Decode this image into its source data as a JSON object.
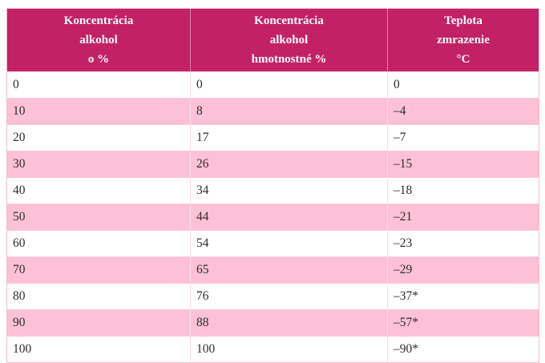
{
  "chart_data": {
    "type": "table",
    "title": "",
    "columns": [
      "Koncentrácia alkohol o %",
      "Koncentrácia alkohol hmotnostné %",
      "Teplota zmrazenie °C"
    ],
    "rows": [
      [
        0,
        0,
        0
      ],
      [
        10,
        8,
        -4
      ],
      [
        20,
        17,
        -7
      ],
      [
        30,
        26,
        -15
      ],
      [
        40,
        34,
        -18
      ],
      [
        50,
        44,
        -21
      ],
      [
        60,
        54,
        -23
      ],
      [
        70,
        65,
        -29
      ],
      [
        80,
        76,
        "-37*"
      ],
      [
        90,
        88,
        "-57*"
      ],
      [
        100,
        100,
        "-90*"
      ]
    ]
  },
  "table": {
    "columns": [
      {
        "lines": [
          "Koncentrácia",
          "alkohol",
          "o %"
        ]
      },
      {
        "lines": [
          "Koncentrácia",
          "alkohol",
          "hmotnostné %"
        ]
      },
      {
        "lines": [
          "Teplota",
          "zmrazenie",
          "°C"
        ]
      }
    ],
    "rows": [
      [
        "0",
        "0",
        "0"
      ],
      [
        "10",
        "8",
        "–4"
      ],
      [
        "20",
        "17",
        "–7"
      ],
      [
        "30",
        "26",
        "–15"
      ],
      [
        "40",
        "34",
        "–18"
      ],
      [
        "50",
        "44",
        "–21"
      ],
      [
        "60",
        "54",
        "–23"
      ],
      [
        "70",
        "65",
        "–29"
      ],
      [
        "80",
        "76",
        "–37*"
      ],
      [
        "90",
        "88",
        "–57*"
      ],
      [
        "100",
        "100",
        "–90*"
      ]
    ],
    "colors": {
      "header_bg": "#c32166",
      "header_text": "#ffffff",
      "row_bg": "#ffffff",
      "row_alt_bg": "#fcc1d6",
      "body_text": "#2d2d2d",
      "grid_outer": "#f1bcd2",
      "grid_vert": "#fadbe7",
      "grid_horiz": "#f7cade"
    }
  }
}
